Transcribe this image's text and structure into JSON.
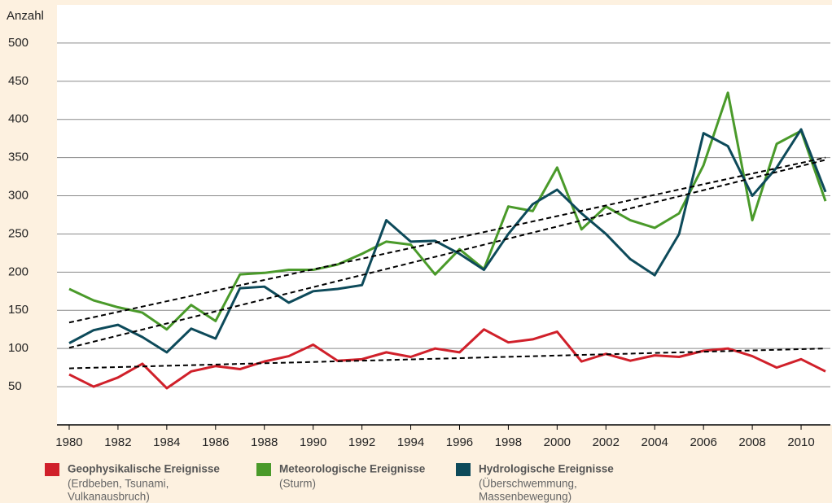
{
  "chart_data": {
    "type": "line",
    "y_label": "Anzahl",
    "x": [
      1980,
      1981,
      1982,
      1983,
      1984,
      1985,
      1986,
      1987,
      1988,
      1989,
      1990,
      1991,
      1992,
      1993,
      1994,
      1995,
      1996,
      1997,
      1998,
      1999,
      2000,
      2001,
      2002,
      2003,
      2004,
      2005,
      2006,
      2007,
      2008,
      2009,
      2010,
      2011
    ],
    "xlim": [
      1979.5,
      2011.2
    ],
    "xticks": [
      1980,
      1982,
      1984,
      1986,
      1988,
      1990,
      1992,
      1994,
      1996,
      1998,
      2000,
      2002,
      2004,
      2006,
      2008,
      2010
    ],
    "ylim": [
      0,
      550
    ],
    "yticks": [
      50,
      100,
      150,
      200,
      250,
      300,
      350,
      400,
      450,
      500
    ],
    "grid": true,
    "trend_x": [
      1980,
      2011
    ],
    "series": [
      {
        "name": "Geophysikalische Ereignisse",
        "description": [
          "(Erdbeben, Tsunami,",
          "Vulkanausbruch)"
        ],
        "color": "#d0202a",
        "values": [
          66,
          50,
          62,
          80,
          48,
          70,
          77,
          73,
          83,
          90,
          105,
          84,
          86,
          95,
          89,
          100,
          95,
          125,
          108,
          112,
          122,
          83,
          93,
          84,
          91,
          89,
          97,
          100,
          90,
          75,
          86,
          70
        ],
        "trend": [
          74,
          100
        ]
      },
      {
        "name": "Meteorologische Ereignisse",
        "description": [
          "(Sturm)"
        ],
        "color": "#4a9a2a",
        "values": [
          178,
          163,
          154,
          147,
          125,
          157,
          136,
          197,
          199,
          203,
          203,
          210,
          224,
          240,
          236,
          197,
          230,
          204,
          286,
          280,
          337,
          256,
          286,
          268,
          258,
          277,
          340,
          435,
          268,
          368,
          385,
          293
        ],
        "trend": [
          134,
          350
        ]
      },
      {
        "name": "Hydrologische Ereignisse",
        "description": [
          "(Überschwemmung,",
          "Massenbewegung)"
        ],
        "color": "#0d4a5a",
        "values": [
          107,
          124,
          131,
          115,
          95,
          126,
          113,
          179,
          181,
          160,
          175,
          178,
          183,
          268,
          240,
          241,
          224,
          203,
          250,
          289,
          308,
          277,
          250,
          217,
          196,
          250,
          382,
          365,
          300,
          337,
          387,
          305
        ],
        "trend": [
          101,
          347
        ]
      }
    ]
  }
}
